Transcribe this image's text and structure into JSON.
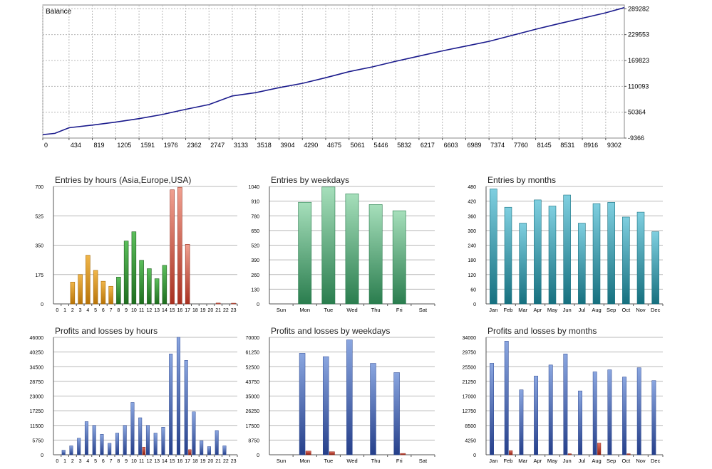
{
  "colors": {
    "balance_line": "#1a1a8c",
    "grid": "#b8b8b8",
    "axis": "#555555",
    "asia": "#d08a14",
    "europe": "#2e8b2e",
    "usa": "#c85040",
    "weekday_bar": "#3e9e66",
    "month_bar": "#2f9bb2",
    "profit_bar": "#3f63b4",
    "loss_bar": "#c0392b"
  },
  "chart_data": [
    {
      "id": "balance",
      "type": "line",
      "title": "Balance",
      "x_ticks": [
        "0",
        "434",
        "819",
        "1205",
        "1591",
        "1976",
        "2362",
        "2747",
        "3133",
        "3518",
        "3904",
        "4290",
        "4675",
        "5061",
        "5446",
        "5832",
        "6217",
        "6603",
        "6989",
        "7374",
        "7760",
        "8145",
        "8531",
        "8916",
        "9302"
      ],
      "y_ticks": [
        "289282",
        "229553",
        "169823",
        "110093",
        "50364",
        "-9366"
      ],
      "xlim": [
        0,
        9610
      ],
      "ylim": [
        -9366,
        298000
      ],
      "grid": true,
      "x": [
        0,
        200,
        434,
        819,
        1205,
        1591,
        1976,
        2362,
        2747,
        3133,
        3518,
        3904,
        4290,
        4675,
        5061,
        5446,
        5832,
        6217,
        6603,
        6989,
        7374,
        7760,
        8145,
        8531,
        8916,
        9302,
        9610
      ],
      "y": [
        -1500,
        1500,
        14500,
        20500,
        27500,
        35500,
        45000,
        57000,
        68000,
        88000,
        95500,
        107000,
        117000,
        130000,
        144000,
        155000,
        168000,
        180000,
        192000,
        203000,
        214000,
        228000,
        242000,
        255000,
        267500,
        280000,
        292000
      ]
    },
    {
      "id": "entries_hours",
      "type": "bar",
      "title": "Entries by hours (Asia,Europe,USA)",
      "categories": [
        "0",
        "1",
        "2",
        "3",
        "4",
        "5",
        "6",
        "7",
        "8",
        "9",
        "10",
        "11",
        "12",
        "13",
        "14",
        "15",
        "16",
        "17",
        "18",
        "19",
        "20",
        "21",
        "22",
        "23"
      ],
      "y_ticks": [
        "700",
        "525",
        "350",
        "175",
        "0"
      ],
      "ylim": [
        0,
        700
      ],
      "grid": true,
      "values": [
        0,
        0,
        130,
        175,
        290,
        200,
        135,
        105,
        160,
        375,
        430,
        260,
        210,
        150,
        230,
        680,
        695,
        355,
        0,
        0,
        0,
        5,
        0,
        4
      ],
      "sessions": [
        "asia",
        "asia",
        "asia",
        "asia",
        "asia",
        "asia",
        "asia",
        "asia",
        "europe",
        "europe",
        "europe",
        "europe",
        "europe",
        "europe",
        "europe",
        "usa",
        "usa",
        "usa",
        "usa",
        "usa",
        "usa",
        "usa",
        "usa",
        "usa"
      ]
    },
    {
      "id": "entries_weekdays",
      "type": "bar",
      "title": "Entries by weekdays",
      "categories": [
        "Sun",
        "Mon",
        "Tue",
        "Wed",
        "Thu",
        "Fri",
        "Sat"
      ],
      "y_ticks": [
        "1040",
        "910",
        "780",
        "650",
        "520",
        "390",
        "260",
        "130",
        "0"
      ],
      "ylim": [
        0,
        1040
      ],
      "grid": true,
      "values": [
        0,
        900,
        1035,
        975,
        880,
        825,
        0
      ]
    },
    {
      "id": "entries_months",
      "type": "bar",
      "title": "Entries by months",
      "categories": [
        "Jan",
        "Feb",
        "Mar",
        "Apr",
        "May",
        "Jun",
        "Jul",
        "Aug",
        "Sep",
        "Oct",
        "Nov",
        "Dec"
      ],
      "y_ticks": [
        "480",
        "420",
        "360",
        "300",
        "240",
        "180",
        "120",
        "60",
        "0"
      ],
      "ylim": [
        0,
        480
      ],
      "grid": true,
      "values": [
        470,
        395,
        330,
        425,
        400,
        445,
        330,
        410,
        415,
        355,
        375,
        295
      ]
    },
    {
      "id": "pl_hours",
      "type": "bar",
      "title": "Profits and losses by hours",
      "categories": [
        "0",
        "1",
        "2",
        "3",
        "4",
        "5",
        "6",
        "7",
        "8",
        "9",
        "10",
        "11",
        "12",
        "13",
        "14",
        "15",
        "16",
        "17",
        "18",
        "19",
        "20",
        "21",
        "22",
        "23"
      ],
      "y_ticks": [
        "46000",
        "40250",
        "34500",
        "28750",
        "23000",
        "17250",
        "11500",
        "5750",
        "0"
      ],
      "ylim": [
        0,
        46000
      ],
      "grid": true,
      "series": [
        {
          "values": [
            0,
            1800,
            3500,
            6500,
            13000,
            11500,
            8000,
            4500,
            8500,
            11500,
            20500,
            14500,
            11500,
            8500,
            10800,
            39500,
            46000,
            37000,
            16800,
            5500,
            3200,
            9500,
            3500,
            0
          ]
        },
        {
          "values": [
            0,
            0,
            0,
            0,
            0,
            0,
            0,
            0,
            0,
            0,
            0,
            3000,
            0,
            0,
            0,
            0,
            0,
            2000,
            0,
            0,
            0,
            0,
            0,
            0
          ]
        }
      ]
    },
    {
      "id": "pl_weekdays",
      "type": "bar",
      "title": "Profits and losses by weekdays",
      "categories": [
        "Sun",
        "Mon",
        "Tue",
        "Wed",
        "Thu",
        "Fri",
        "Sat"
      ],
      "y_ticks": [
        "70000",
        "61250",
        "52500",
        "43750",
        "35000",
        "26250",
        "17500",
        "8750",
        "0"
      ],
      "ylim": [
        0,
        70000
      ],
      "grid": true,
      "series": [
        {
          "values": [
            0,
            60500,
            58500,
            68500,
            54500,
            49000,
            0
          ]
        },
        {
          "values": [
            0,
            2200,
            1800,
            0,
            0,
            800,
            0
          ]
        }
      ]
    },
    {
      "id": "pl_months",
      "type": "bar",
      "title": "Profits and losses by months",
      "categories": [
        "Jan",
        "Feb",
        "Mar",
        "Apr",
        "May",
        "Jun",
        "Jul",
        "Aug",
        "Sep",
        "Oct",
        "Nov",
        "Dec"
      ],
      "y_ticks": [
        "34000",
        "29750",
        "25500",
        "21250",
        "17000",
        "12750",
        "8500",
        "4250",
        "0"
      ],
      "ylim": [
        0,
        34000
      ],
      "grid": true,
      "series": [
        {
          "values": [
            26500,
            32900,
            18800,
            22800,
            26000,
            29200,
            18500,
            24000,
            24600,
            22500,
            25200,
            21500
          ]
        },
        {
          "values": [
            0,
            1200,
            0,
            0,
            0,
            300,
            0,
            3400,
            0,
            300,
            0,
            0
          ]
        }
      ]
    }
  ]
}
